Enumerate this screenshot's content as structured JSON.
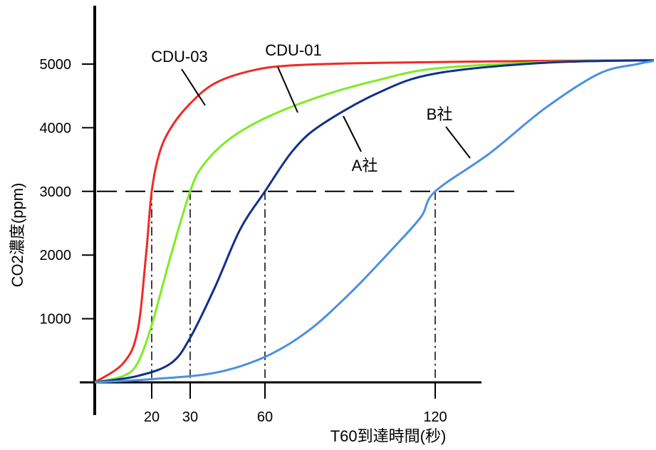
{
  "chart_data": {
    "type": "line",
    "title": "",
    "xlabel": "T60到達時間(秒)",
    "ylabel": "CO2濃度(ppm)",
    "xlim": [
      0,
      160
    ],
    "ylim": [
      0,
      5100
    ],
    "x_ticks": [
      20,
      30,
      60,
      120
    ],
    "y_ticks": [
      1000,
      2000,
      3000,
      4000,
      5000
    ],
    "reference_line": {
      "y": 3000,
      "style": "dashed"
    },
    "series": [
      {
        "name": "CDU-03",
        "color": "#ee2a24",
        "points": [
          [
            0,
            0
          ],
          [
            10,
            300
          ],
          [
            15,
            800
          ],
          [
            18,
            2000
          ],
          [
            20,
            3000
          ],
          [
            22,
            3600
          ],
          [
            25,
            4000
          ],
          [
            30,
            4380
          ],
          [
            40,
            4700
          ],
          [
            55,
            4900
          ],
          [
            70,
            4980
          ],
          [
            100,
            5020
          ],
          [
            140,
            5050
          ],
          [
            160,
            5060
          ]
        ]
      },
      {
        "name": "CDU-01",
        "color": "#7ded22",
        "points": [
          [
            0,
            0
          ],
          [
            10,
            100
          ],
          [
            15,
            300
          ],
          [
            20,
            900
          ],
          [
            25,
            2000
          ],
          [
            30,
            3000
          ],
          [
            35,
            3400
          ],
          [
            45,
            3800
          ],
          [
            60,
            4150
          ],
          [
            80,
            4500
          ],
          [
            100,
            4750
          ],
          [
            120,
            4930
          ],
          [
            140,
            5030
          ],
          [
            160,
            5060
          ]
        ]
      },
      {
        "name": "A社",
        "color": "#10308a",
        "points": [
          [
            0,
            0
          ],
          [
            15,
            100
          ],
          [
            25,
            300
          ],
          [
            30,
            700
          ],
          [
            40,
            1500
          ],
          [
            50,
            2400
          ],
          [
            60,
            3000
          ],
          [
            70,
            3650
          ],
          [
            80,
            4050
          ],
          [
            100,
            4550
          ],
          [
            120,
            4850
          ],
          [
            140,
            5020
          ],
          [
            160,
            5060
          ]
        ]
      },
      {
        "name": "B社",
        "color": "#4a90e2",
        "points": [
          [
            0,
            0
          ],
          [
            20,
            50
          ],
          [
            40,
            150
          ],
          [
            60,
            400
          ],
          [
            75,
            800
          ],
          [
            90,
            1400
          ],
          [
            105,
            2100
          ],
          [
            115,
            2600
          ],
          [
            120,
            3000
          ],
          [
            130,
            3600
          ],
          [
            140,
            4300
          ],
          [
            150,
            4850
          ],
          [
            157,
            5000
          ],
          [
            160,
            5050
          ]
        ]
      }
    ]
  }
}
